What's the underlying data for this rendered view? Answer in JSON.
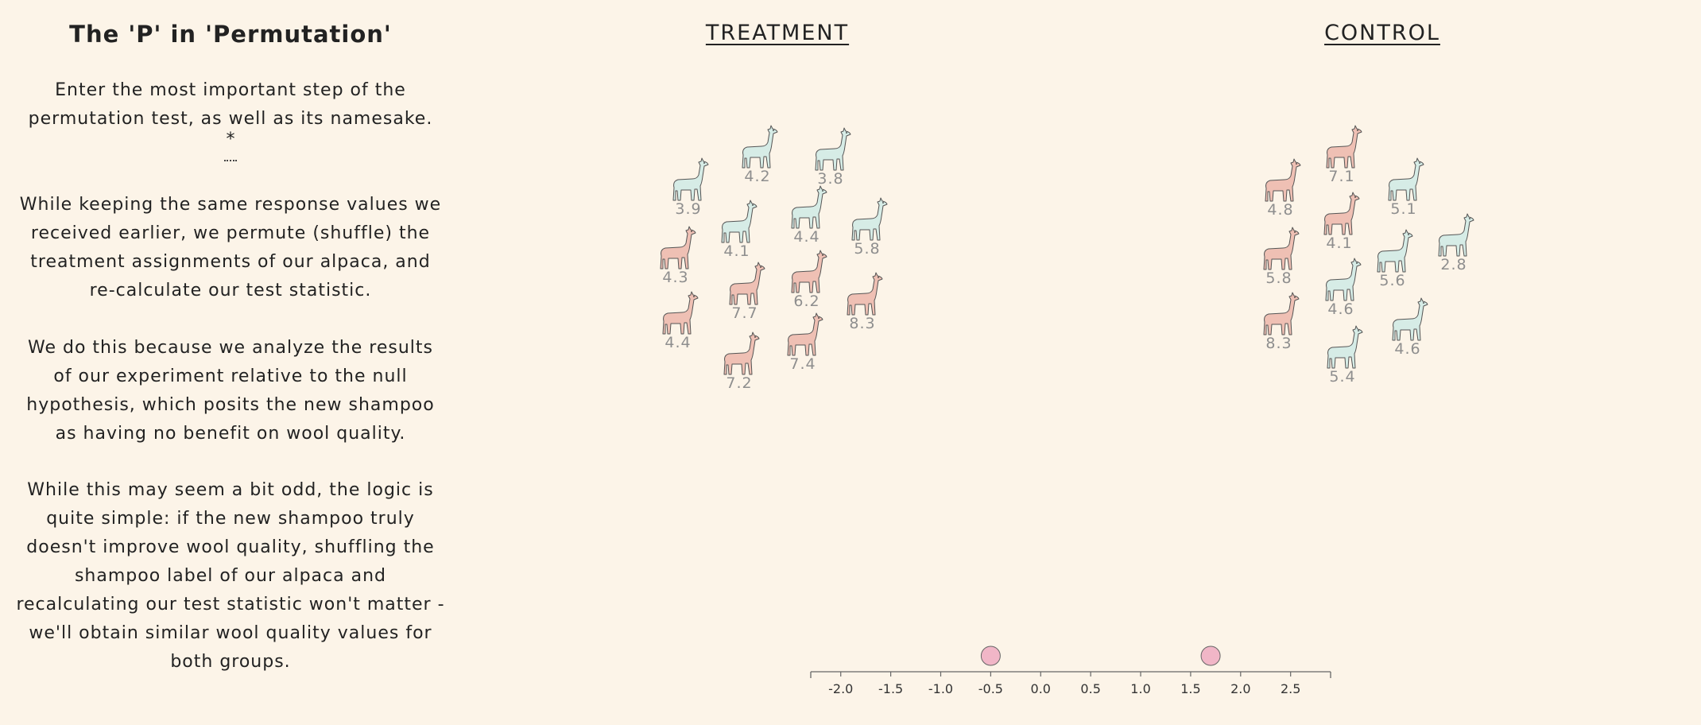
{
  "sidebar": {
    "title": "The 'P' in 'Permutation'",
    "prompt": "Enter the most important step of the permutation test, as well as its namesake.",
    "answer_marker": "*",
    "answer_value": "",
    "paragraphs": [
      "While keeping the same response values we received earlier, we permute (shuffle) the treatment assignments of our alpaca, and re-calculate our test statistic.",
      "We do this because we analyze the results of our experiment relative to the null hypothesis, which posits the new shampoo as having no benefit on wool quality.",
      "While this may seem a bit odd, the logic is quite simple: if the new shampoo truly doesn't improve wool quality, shuffling the shampoo label of our alpaca and recalculating our test statistic won't matter - we'll obtain similar wool quality values for both groups."
    ]
  },
  "groups": {
    "treatment_label": "TREATMENT",
    "control_label": "CONTROL"
  },
  "colors": {
    "background": "#fcf4e8",
    "blue_alpaca": "#d6ece6",
    "pink_alpaca": "#efc0b4",
    "dot": "#f1b6c7",
    "value_text": "#8e8e8e"
  },
  "treatment_alpacas": [
    {
      "value": "4.2",
      "color": "blue"
    },
    {
      "value": "3.8",
      "color": "blue"
    },
    {
      "value": "3.9",
      "color": "blue"
    },
    {
      "value": "4.1",
      "color": "blue"
    },
    {
      "value": "4.4",
      "color": "blue"
    },
    {
      "value": "5.8",
      "color": "blue"
    },
    {
      "value": "4.3",
      "color": "pink"
    },
    {
      "value": "7.7",
      "color": "pink"
    },
    {
      "value": "6.2",
      "color": "pink"
    },
    {
      "value": "8.3",
      "color": "pink"
    },
    {
      "value": "4.4",
      "color": "pink"
    },
    {
      "value": "7.4",
      "color": "pink"
    },
    {
      "value": "7.2",
      "color": "pink"
    }
  ],
  "control_alpacas": [
    {
      "value": "7.1",
      "color": "pink"
    },
    {
      "value": "4.8",
      "color": "pink"
    },
    {
      "value": "5.1",
      "color": "blue"
    },
    {
      "value": "4.1",
      "color": "pink"
    },
    {
      "value": "2.8",
      "color": "blue"
    },
    {
      "value": "5.8",
      "color": "pink"
    },
    {
      "value": "5.6",
      "color": "blue"
    },
    {
      "value": "4.6",
      "color": "blue"
    },
    {
      "value": "8.3",
      "color": "pink"
    },
    {
      "value": "4.6",
      "color": "blue"
    },
    {
      "value": "5.4",
      "color": "blue"
    }
  ],
  "dotplot": {
    "ticks": [
      "-2.0",
      "-1.5",
      "-1.0",
      "-0.5",
      "0.0",
      "0.5",
      "1.0",
      "1.5",
      "2.0",
      "2.5"
    ],
    "domain": [
      -2.3,
      2.9
    ],
    "points": [
      -0.5,
      1.7
    ]
  }
}
